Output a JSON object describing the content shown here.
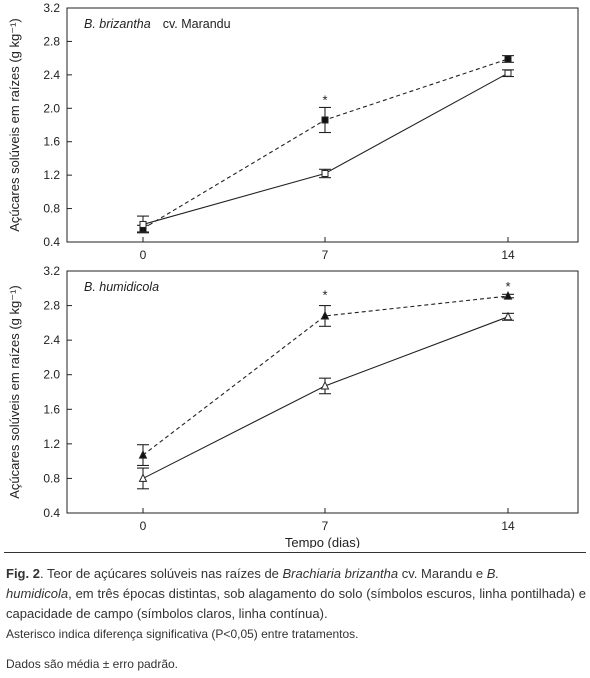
{
  "chart_data": [
    {
      "type": "line",
      "title_species": "B. brizantha",
      "title_suffix": "cv. Marandu",
      "ylabel": "Açúcares solúveis em raízes (g kg⁻¹)",
      "x": [
        0,
        7,
        14
      ],
      "x_tick_labels": [
        "0",
        "7",
        "14"
      ],
      "ylim": [
        0.4,
        3.2
      ],
      "y_ticks": [
        0.4,
        0.8,
        1.2,
        1.6,
        2.0,
        2.4,
        2.8,
        3.2
      ],
      "y_tick_labels": [
        "0.4",
        "0.8",
        "1.2",
        "1.6",
        "2.0",
        "2.4",
        "2.8",
        "3.2"
      ],
      "series": [
        {
          "treatment": "flooded",
          "style": "dashed",
          "marker": "filled-square",
          "values": [
            0.56,
            1.86,
            2.59
          ],
          "errors": [
            0.04,
            0.15,
            0.04
          ]
        },
        {
          "treatment": "field-capacity",
          "style": "solid",
          "marker": "open-square",
          "values": [
            0.61,
            1.22,
            2.42
          ],
          "errors": [
            0.1,
            0.05,
            0.04
          ]
        }
      ],
      "annotations": [
        {
          "x": 7,
          "y": 2.12,
          "text": "*"
        }
      ]
    },
    {
      "type": "line",
      "title_species": "B. humidicola",
      "title_suffix": "",
      "ylabel": "Açúcares solúveis em raízes (g kg⁻¹)",
      "x": [
        0,
        7,
        14
      ],
      "x_tick_labels": [
        "0",
        "7",
        "14"
      ],
      "xlabel": "Tempo (dias)",
      "ylim": [
        0.4,
        3.2
      ],
      "y_ticks": [
        0.4,
        0.8,
        1.2,
        1.6,
        2.0,
        2.4,
        2.8,
        3.2
      ],
      "y_tick_labels": [
        "0.4",
        "0.8",
        "1.2",
        "1.6",
        "2.0",
        "2.4",
        "2.8",
        "3.2"
      ],
      "series": [
        {
          "treatment": "flooded",
          "style": "dashed",
          "marker": "filled-triangle",
          "values": [
            1.07,
            2.68,
            2.91
          ],
          "errors": [
            0.12,
            0.12,
            0.02
          ]
        },
        {
          "treatment": "field-capacity",
          "style": "solid",
          "marker": "open-triangle",
          "values": [
            0.8,
            1.87,
            2.67
          ],
          "errors": [
            0.12,
            0.09,
            0.04
          ]
        }
      ],
      "annotations": [
        {
          "x": 7,
          "y": 2.94,
          "text": "*"
        },
        {
          "x": 14,
          "y": 3.04,
          "text": "*"
        }
      ]
    }
  ],
  "caption": {
    "fig_label": "Fig. 2",
    "text_a": ". Teor de açúcares solúveis nas raízes de ",
    "species_a": "Brachiaria brizantha",
    "text_b": " cv. Marandu e ",
    "species_b_first": "B.",
    "species_b_second": "humidicola",
    "text_c": ", em três épocas distintas, sob alagamento do solo (símbolos escuros, linha pontilhada) e capacidade de campo (símbolos claros, linha contínua).",
    "note_1": "Asterisco indica diferença significativa (P<0,05) entre tratamentos.",
    "note_2": "Dados são média ± erro padrão."
  }
}
